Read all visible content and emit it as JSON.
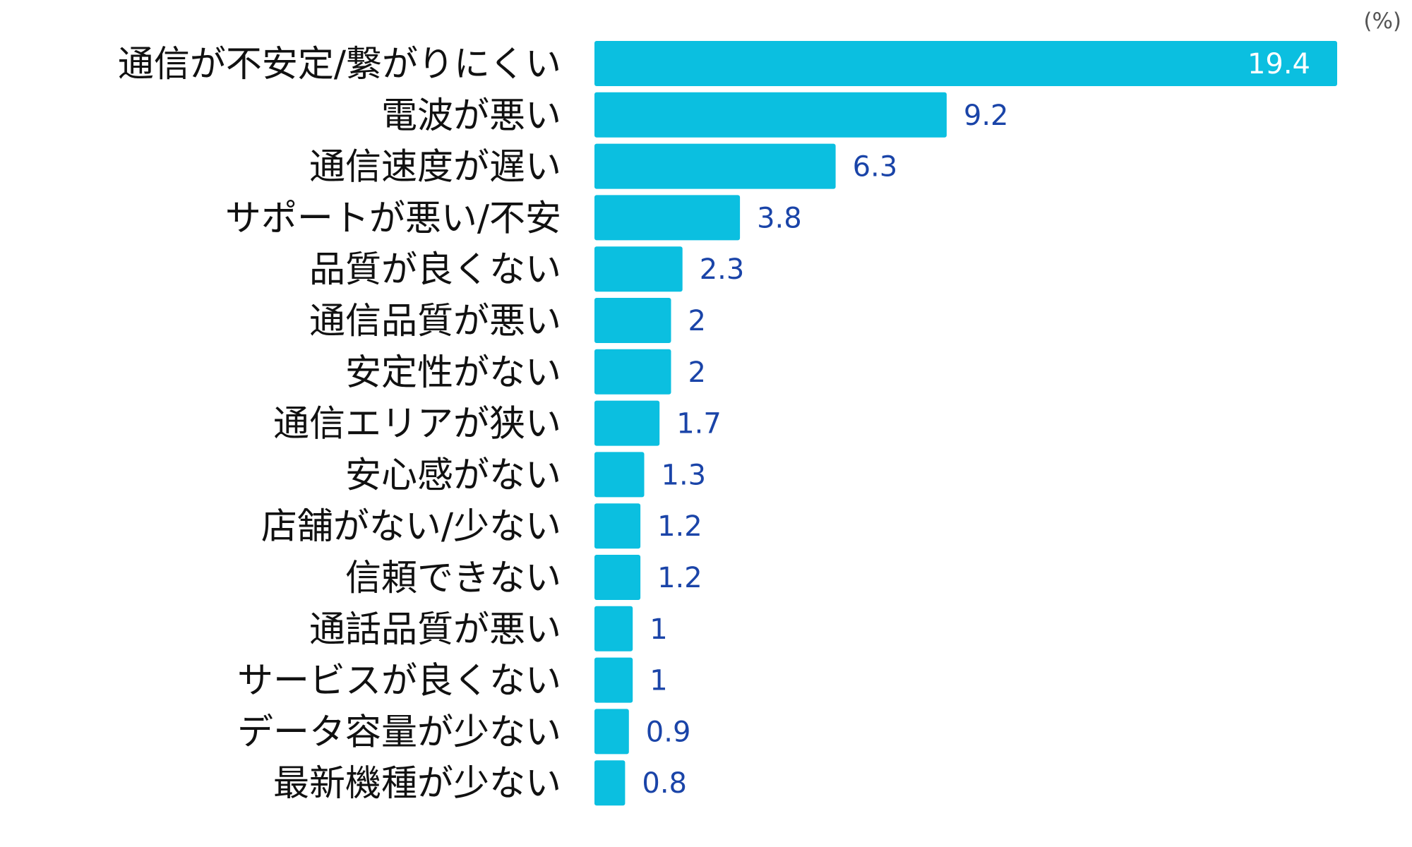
{
  "chart_data": {
    "type": "bar",
    "orientation": "horizontal",
    "unit": "(%)",
    "categories": [
      "通信が不安定/繋がりにくい",
      "電波が悪い",
      "通信速度が遅い",
      "サポートが悪い/不安",
      "品質が良くない",
      "通信品質が悪い",
      "安定性がない",
      "通信エリアが狭い",
      "安心感がない",
      "店舗がない/少ない",
      "信頼できない",
      "通話品質が悪い",
      "サービスが良くない",
      "データ容量が少ない",
      "最新機種が少ない"
    ],
    "values": [
      19.4,
      9.2,
      6.3,
      3.8,
      2.3,
      2,
      2,
      1.7,
      1.3,
      1.2,
      1.2,
      1,
      1,
      0.9,
      0.8
    ],
    "value_labels": [
      "19.4",
      "9.2",
      "6.3",
      "3.8",
      "2.3",
      "2",
      "2",
      "1.7",
      "1.3",
      "1.2",
      "1.2",
      "1",
      "1",
      "0.9",
      "0.8"
    ],
    "xlim": [
      0,
      19.4
    ],
    "grid": false,
    "legend": "none",
    "colors": {
      "bar": "#0bbfe0",
      "value_text": "#1a44a8",
      "value_text_inside": "#ffffff",
      "category_text": "#111111",
      "unit_text": "#555555"
    }
  }
}
